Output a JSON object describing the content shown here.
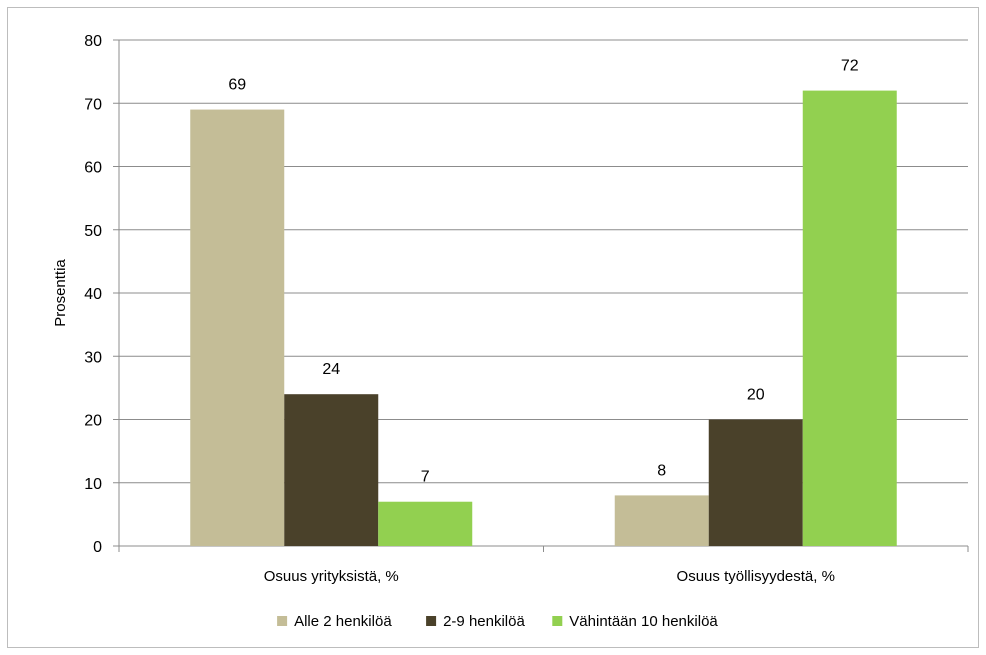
{
  "chart_data": {
    "type": "bar",
    "categories": [
      "Osuus yrityksistä, %",
      "Osuus työllisyydestä, %"
    ],
    "series": [
      {
        "name": "Alle 2 henkilöä",
        "values": [
          69,
          8
        ],
        "color": "#c4bd97"
      },
      {
        "name": "2-9 henkilöä",
        "values": [
          24,
          20
        ],
        "color": "#4a412a"
      },
      {
        "name": "Vähintään 10 henkilöä",
        "values": [
          7,
          72
        ],
        "color": "#92d050"
      }
    ],
    "data_labels": [
      [
        "69",
        "8"
      ],
      [
        "24",
        "20"
      ],
      [
        "7",
        "72"
      ]
    ],
    "ylabel": "Prosenttia",
    "xlabel": "",
    "ylim": [
      0,
      80
    ],
    "yticks": [
      0,
      10,
      20,
      30,
      40,
      50,
      60,
      70,
      80
    ],
    "grid": true,
    "legend_position": "bottom",
    "colors": {
      "gridline": "#8c8c8c",
      "axis": "#8c8c8c"
    }
  }
}
